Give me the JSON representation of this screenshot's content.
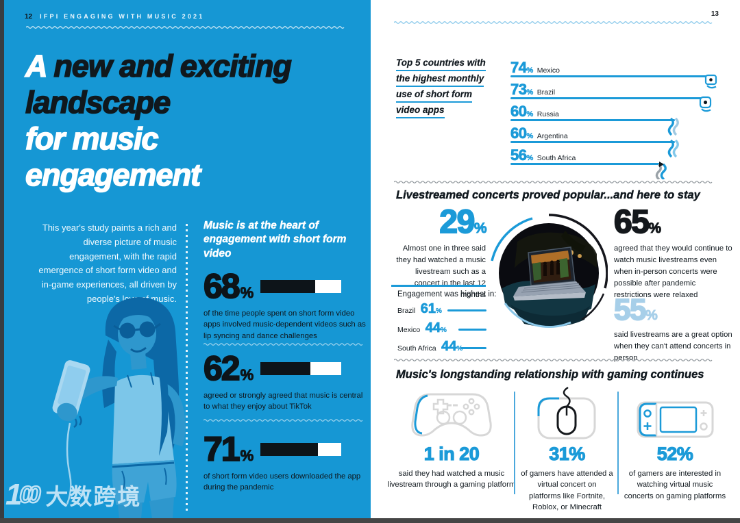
{
  "colors": {
    "page_blue": "#1697d4",
    "accent_blue": "#1b9ad8",
    "light_blue": "#a7cfe9",
    "ink": "#10181e"
  },
  "left_page": {
    "page_number": "12",
    "header": "IFPI ENGAGING WITH MUSIC 2021",
    "headline": {
      "white_word": "A",
      "black_part": "new and exciting",
      "line2": "landscape",
      "line3": "for music",
      "line4": "engagement"
    },
    "intro": "This year's study paints a rich and diverse picture of music engagement, with the rapid emergence of short form video and in-game experiences, all driven by people's love of music.",
    "stats_heading": "Music is at the heart of engagement with short form video",
    "stats": [
      {
        "value": "68",
        "unit": "%",
        "pct": 68,
        "description": "of the time people spent on short form video apps involved music-dependent videos such as lip syncing and dance challenges"
      },
      {
        "value": "62",
        "unit": "%",
        "pct": 62,
        "description": "agreed or strongly agreed that music is central to what they enjoy about TikTok"
      },
      {
        "value": "71",
        "unit": "%",
        "pct": 71,
        "description": "of short form video users downloaded the app during the pandemic"
      }
    ]
  },
  "right_page": {
    "page_number": "13",
    "top_chart": {
      "label_lines": [
        "Top 5 countries with",
        "the highest monthly",
        "use of short form",
        "video apps"
      ],
      "bars": [
        {
          "value": "74",
          "unit": "%",
          "country": "Mexico"
        },
        {
          "value": "73",
          "unit": "%",
          "country": "Brazil"
        },
        {
          "value": "60",
          "unit": "%",
          "country": "Russia"
        },
        {
          "value": "60",
          "unit": "%",
          "country": "Argentina"
        },
        {
          "value": "56",
          "unit": "%",
          "country": "South Africa"
        }
      ]
    },
    "livestream": {
      "heading": "Livestreamed concerts proved popular...and here to stay",
      "stat29": {
        "value": "29",
        "unit": "%",
        "text": "Almost one in three said they had watched a music livestream such as a concert in the last 12 months"
      },
      "engagement_title": "Engagement was highest in:",
      "engagement_rows": [
        {
          "country": "Brazil",
          "value": "61",
          "unit": "%"
        },
        {
          "country": "Mexico",
          "value": "44",
          "unit": "%"
        },
        {
          "country": "South Africa",
          "value": "44",
          "unit": "%"
        }
      ],
      "stat65": {
        "value": "65",
        "unit": "%",
        "text": "agreed that they would continue to watch music livestreams even when in-person concerts were possible after pandemic restrictions were relaxed"
      },
      "stat55": {
        "value": "55",
        "unit": "%",
        "text": "said livestreams are a great option when they can't attend concerts in person"
      }
    },
    "gaming": {
      "heading": "Music's longstanding relationship with gaming continues",
      "cols": [
        {
          "icon": "game-controller-icon",
          "value": "1 in 20",
          "unit": "",
          "text": "said they had watched a music livestream through a gaming platform"
        },
        {
          "icon": "computer-mouse-icon",
          "value": "31",
          "unit": "%",
          "text": "of gamers have attended a virtual concert on platforms like Fortnite, Roblox, or Minecraft"
        },
        {
          "icon": "game-console-icon",
          "value": "52",
          "unit": "%",
          "text": "of gamers are interested in watching virtual music concerts on gaming platforms"
        }
      ]
    }
  },
  "watermark": {
    "logo_1": "1",
    "logo_oo": "00",
    "text": "大数跨境"
  },
  "chart_data": [
    {
      "type": "bar",
      "title": "Top 5 countries with the highest monthly use of short form video apps",
      "categories": [
        "Mexico",
        "Brazil",
        "Russia",
        "Argentina",
        "South Africa"
      ],
      "values": [
        74,
        73,
        60,
        60,
        56
      ],
      "unit": "%",
      "orientation": "horizontal"
    },
    {
      "type": "bar",
      "title": "Engagement was highest in",
      "categories": [
        "Brazil",
        "Mexico",
        "South Africa"
      ],
      "values": [
        61,
        44,
        44
      ],
      "unit": "%",
      "orientation": "horizontal"
    },
    {
      "type": "bar",
      "title": "Music is at the heart of engagement with short form video",
      "categories": [
        "time on short form video apps involving music-dependent videos",
        "agree music is central to what they enjoy about TikTok",
        "short form video users who downloaded the app during the pandemic"
      ],
      "values": [
        68,
        62,
        71
      ],
      "unit": "%",
      "orientation": "horizontal",
      "xlim": [
        0,
        100
      ]
    }
  ]
}
